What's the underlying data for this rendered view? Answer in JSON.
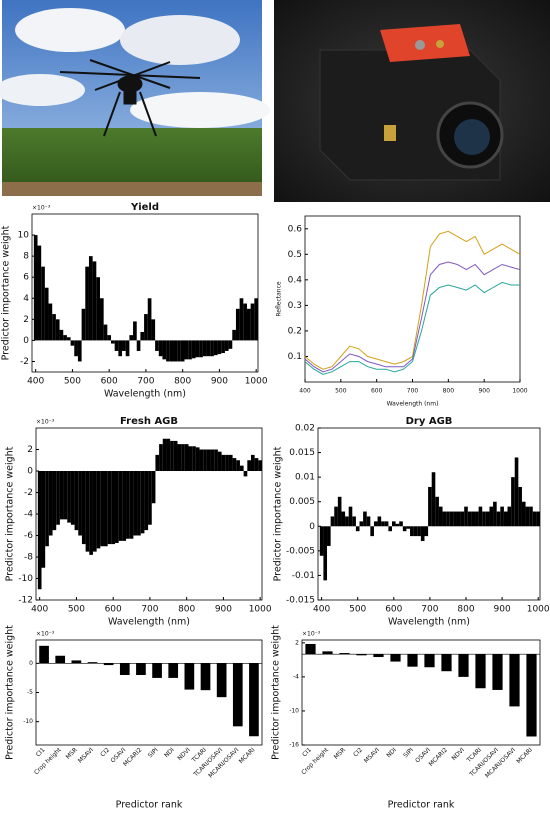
{
  "chart_data": [
    {
      "type": "bar",
      "title": "Yield",
      "multiplier": "×10⁻³",
      "xlabel": "Wavelength (nm)",
      "ylabel": "Predictor importance weight",
      "color": "#000000",
      "x": [
        400,
        410,
        420,
        430,
        440,
        450,
        460,
        470,
        480,
        490,
        500,
        510,
        520,
        530,
        540,
        550,
        560,
        570,
        580,
        590,
        600,
        610,
        620,
        630,
        640,
        650,
        660,
        670,
        680,
        690,
        700,
        710,
        720,
        730,
        740,
        750,
        760,
        770,
        780,
        790,
        800,
        810,
        820,
        830,
        840,
        850,
        860,
        870,
        880,
        890,
        900,
        910,
        920,
        930,
        940,
        950,
        960,
        970,
        980,
        990,
        1000
      ],
      "values": [
        10,
        9,
        7,
        5,
        3.5,
        2.5,
        2,
        1,
        0.5,
        0.3,
        -0.5,
        -1.5,
        -2,
        3,
        7,
        8,
        7.5,
        6,
        4,
        1.5,
        0.5,
        -0.3,
        -1,
        -1.5,
        -1,
        -1.5,
        0.5,
        1.8,
        -1,
        0.8,
        2.5,
        4,
        2,
        -1,
        -1.5,
        -1.8,
        -2,
        -2,
        -2,
        -2,
        -2,
        -1.8,
        -1.8,
        -1.7,
        -1.6,
        -1.6,
        -1.5,
        -1.5,
        -1.5,
        -1.4,
        -1.3,
        -1.2,
        -1,
        -0.8,
        1,
        3,
        4,
        3.5,
        3,
        3.5,
        4
      ],
      "xlim": [
        390,
        1005
      ],
      "xticks": [
        400,
        500,
        600,
        700,
        800,
        900,
        1000
      ],
      "ylim": [
        -3,
        12
      ],
      "yticks": [
        -2,
        0,
        2,
        4,
        6,
        8,
        10
      ]
    },
    {
      "type": "line",
      "xlabel": "Wavelength (nm)",
      "ylabel": "Reflectance",
      "x": [
        400,
        425,
        450,
        475,
        500,
        525,
        550,
        575,
        600,
        625,
        650,
        675,
        700,
        725,
        750,
        775,
        800,
        825,
        850,
        875,
        900,
        925,
        950,
        975,
        1000
      ],
      "series": [
        {
          "color": "#d4a017",
          "values": [
            0.1,
            0.07,
            0.05,
            0.06,
            0.1,
            0.14,
            0.13,
            0.1,
            0.09,
            0.08,
            0.07,
            0.08,
            0.1,
            0.3,
            0.53,
            0.58,
            0.59,
            0.57,
            0.55,
            0.57,
            0.5,
            0.52,
            0.54,
            0.52,
            0.5
          ]
        },
        {
          "color": "#7e57c2",
          "values": [
            0.09,
            0.06,
            0.04,
            0.05,
            0.08,
            0.11,
            0.1,
            0.08,
            0.07,
            0.06,
            0.06,
            0.06,
            0.09,
            0.25,
            0.42,
            0.46,
            0.47,
            0.46,
            0.44,
            0.46,
            0.42,
            0.44,
            0.46,
            0.45,
            0.44
          ]
        },
        {
          "color": "#26a69a",
          "values": [
            0.08,
            0.05,
            0.03,
            0.04,
            0.06,
            0.08,
            0.08,
            0.06,
            0.05,
            0.05,
            0.04,
            0.05,
            0.08,
            0.2,
            0.34,
            0.37,
            0.38,
            0.37,
            0.36,
            0.38,
            0.35,
            0.37,
            0.39,
            0.38,
            0.38
          ]
        }
      ],
      "xlim": [
        400,
        1000
      ],
      "xticks": [
        400,
        500,
        600,
        700,
        800,
        900,
        1000
      ],
      "ylim": [
        0,
        0.65
      ],
      "yticks": [
        0.1,
        0.2,
        0.3,
        0.4,
        0.5,
        0.6
      ]
    },
    {
      "type": "bar",
      "title": "Fresh AGB",
      "multiplier": "×10⁻³",
      "xlabel": "Wavelength (nm)",
      "ylabel": "Predictor importance weight",
      "color": "#000000",
      "x": [
        400,
        410,
        420,
        430,
        440,
        450,
        460,
        470,
        480,
        490,
        500,
        510,
        520,
        530,
        540,
        550,
        560,
        570,
        580,
        590,
        600,
        610,
        620,
        630,
        640,
        650,
        660,
        670,
        680,
        690,
        700,
        710,
        720,
        730,
        740,
        750,
        760,
        770,
        780,
        790,
        800,
        810,
        820,
        830,
        840,
        850,
        860,
        870,
        880,
        890,
        900,
        910,
        920,
        930,
        940,
        950,
        960,
        970,
        980,
        990,
        1000
      ],
      "values": [
        -11,
        -9,
        -7,
        -6,
        -5.5,
        -5,
        -4.5,
        -4.5,
        -4.8,
        -5,
        -5.5,
        -6,
        -6.8,
        -7.5,
        -7.8,
        -7.5,
        -7.2,
        -7,
        -7,
        -6.8,
        -6.8,
        -6.7,
        -6.5,
        -6.5,
        -6.3,
        -6.3,
        -6,
        -6,
        -5.8,
        -5.5,
        -5,
        -3,
        1.5,
        2.5,
        3,
        3,
        2.8,
        2.8,
        2.5,
        2.5,
        2.5,
        2.3,
        2.3,
        2.2,
        2,
        2,
        2,
        2,
        2,
        1.8,
        1.5,
        1.5,
        1.5,
        1.2,
        1,
        0.5,
        -0.5,
        1,
        1.5,
        1.2,
        1
      ],
      "xlim": [
        390,
        1005
      ],
      "xticks": [
        400,
        500,
        600,
        700,
        800,
        900,
        1000
      ],
      "ylim": [
        -12,
        4
      ],
      "yticks": [
        -12,
        -10,
        -8,
        -6,
        -4,
        -2,
        0,
        2
      ]
    },
    {
      "type": "bar",
      "title": "Dry AGB",
      "xlabel": "Wavelength (nm)",
      "ylabel": "Predictor importance weight",
      "color": "#000000",
      "x": [
        400,
        410,
        420,
        430,
        440,
        450,
        460,
        470,
        480,
        490,
        500,
        510,
        520,
        530,
        540,
        550,
        560,
        570,
        580,
        590,
        600,
        610,
        620,
        630,
        640,
        650,
        660,
        670,
        680,
        690,
        700,
        710,
        720,
        730,
        740,
        750,
        760,
        770,
        780,
        790,
        800,
        810,
        820,
        830,
        840,
        850,
        860,
        870,
        880,
        890,
        900,
        910,
        920,
        930,
        940,
        950,
        960,
        970,
        980,
        990,
        1000
      ],
      "values": [
        -0.006,
        -0.011,
        -0.004,
        0.002,
        0.004,
        0.006,
        0.003,
        0.002,
        0.004,
        0.002,
        -0.001,
        0.001,
        0.003,
        0.002,
        -0.002,
        0.001,
        0.002,
        0.001,
        0.001,
        -0.001,
        0.001,
        0.0005,
        0.001,
        -0.001,
        -0.0005,
        -0.002,
        -0.002,
        -0.002,
        -0.003,
        -0.002,
        0.008,
        0.011,
        0.006,
        0.004,
        0.003,
        0.003,
        0.003,
        0.003,
        0.003,
        0.003,
        0.004,
        0.003,
        0.003,
        0.003,
        0.004,
        0.003,
        0.003,
        0.004,
        0.005,
        0.003,
        0.004,
        0.003,
        0.004,
        0.01,
        0.014,
        0.008,
        0.005,
        0.004,
        0.004,
        0.003,
        0.003
      ],
      "xlim": [
        390,
        1005
      ],
      "xticks": [
        400,
        500,
        600,
        700,
        800,
        900,
        1000
      ],
      "ylim": [
        -0.015,
        0.02
      ],
      "yticks": [
        -0.015,
        -0.01,
        -0.005,
        0,
        0.005,
        0.01,
        0.015,
        0.02
      ]
    },
    {
      "type": "bar",
      "multiplier": "×10⁻³",
      "xlabel": "Predictor rank",
      "ylabel": "Predictor importance weight",
      "color": "#000000",
      "categories": [
        "CI1",
        "Crop height",
        "MSR",
        "MSAVI",
        "CI2",
        "OSAVI",
        "MCARI2",
        "SIPI",
        "NDI",
        "NDVI",
        "TCARI",
        "TCARI/OSAVI",
        "MCARI/OSAVI",
        "MCARI"
      ],
      "values": [
        3,
        1.3,
        0.5,
        0.2,
        -0.3,
        -2,
        -2,
        -2.5,
        -2.5,
        -4.5,
        -4.6,
        -5.8,
        -10.8,
        -12.5
      ],
      "ylim": [
        -14,
        4
      ],
      "yticks": [
        -10,
        -5,
        0
      ]
    },
    {
      "type": "bar",
      "multiplier": "×10⁻³",
      "xlabel": "Predictor rank",
      "ylabel": "Predictor importance weight",
      "color": "#000000",
      "categories": [
        "CI1",
        "Crop height",
        "MSR",
        "CI2",
        "MSAVI",
        "NDI",
        "SIPI",
        "OSAVI",
        "MCARI2",
        "NDVI",
        "TCARI",
        "TCARI/OSAVI",
        "MCARI/OSAVI",
        "MCARI"
      ],
      "values": [
        1.8,
        0.5,
        0.2,
        -0.2,
        -0.5,
        -1.3,
        -2.2,
        -2.3,
        -3,
        -4,
        -6,
        -6.3,
        -9.2,
        -14.5
      ],
      "ylim": [
        -16,
        2.5
      ],
      "yticks": [
        -16,
        -10,
        -4,
        2
      ]
    }
  ]
}
